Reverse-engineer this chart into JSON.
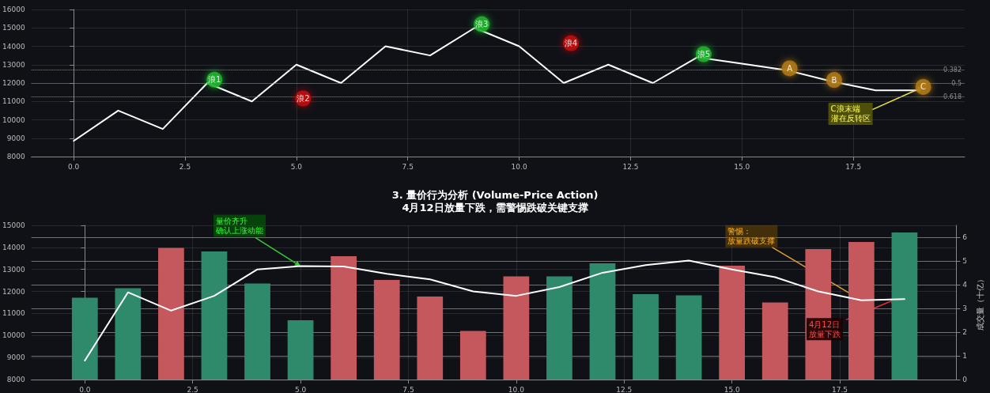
{
  "chart_data": [
    {
      "type": "line",
      "x": [
        0,
        1,
        2,
        3,
        4,
        5,
        6,
        7,
        8,
        9,
        10,
        11,
        12,
        13,
        14,
        15,
        16,
        17,
        18,
        19
      ],
      "xlim": [
        -0.95,
        20
      ],
      "xticks": [
        {
          "value": 0,
          "label": "0.0"
        },
        {
          "value": 2.5,
          "label": "2.5"
        },
        {
          "value": 5,
          "label": "5.0"
        },
        {
          "value": 7.5,
          "label": "7.5"
        },
        {
          "value": 10,
          "label": "10.0"
        },
        {
          "value": 12.5,
          "label": "12.5"
        },
        {
          "value": 15,
          "label": "15.0"
        },
        {
          "value": 17.5,
          "label": "17.5"
        }
      ],
      "ylim": [
        8000,
        16000
      ],
      "yticks": [
        8000,
        9000,
        10000,
        11000,
        12000,
        13000,
        14000,
        15000,
        16000
      ],
      "grid": true,
      "series": [
        {
          "color": "#ffffff",
          "values": [
            8850,
            10500,
            9500,
            12000,
            11000,
            13000,
            12000,
            14000,
            13500,
            15000,
            14000,
            12000,
            13000,
            12000,
            13400,
            13050,
            12700,
            12100,
            11600,
            11600
          ]
        },
        {
          "type": "scatter",
          "marker": "circle",
          "color": "#1fb52a",
          "x": [
            3.16,
            9.16,
            14.14
          ],
          "values": [
            12180,
            15200,
            13570
          ],
          "value_labels": [
            "浪1",
            "浪3",
            "浪5"
          ]
        },
        {
          "type": "scatter",
          "marker": "circle",
          "color": "#c01010",
          "x": [
            5.15,
            11.16
          ],
          "values": [
            11160,
            14170
          ],
          "value_labels": [
            "浪2",
            "浪4"
          ]
        },
        {
          "type": "scatter",
          "marker": "circle",
          "color": "#b07a14",
          "x": [
            16.07,
            17.07,
            19.07
          ],
          "values": [
            12800,
            12170,
            11790
          ],
          "value_labels": [
            "A",
            "B",
            "C"
          ]
        }
      ],
      "ref_lines": [
        {
          "axis": "y",
          "value": 12700,
          "color": "#8a8a8a",
          "line_style": "dotted"
        },
        {
          "axis": "y",
          "value": 12000,
          "color": "#8a8a8a",
          "line_style": "dotted"
        },
        {
          "axis": "y",
          "value": 11250,
          "color": "#8a8a8a",
          "line_style": "dotted"
        }
      ],
      "annotations": [
        {
          "text": "C浪末端潜在反转区",
          "x": 19.07,
          "y": 11790
        },
        {
          "text": "0.382",
          "y": 12700
        },
        {
          "text": "0.5",
          "y": 12000
        },
        {
          "text": "0.618",
          "y": 11250
        }
      ]
    },
    {
      "type": "bar",
      "title": "3. 量价行为分析 (Volume-Price Action)",
      "subtitle": "4月12日放量下跌，需警惕跌破关键支撑",
      "y2label": "成交量（十亿）",
      "x": [
        0,
        1,
        2,
        3,
        4,
        5,
        6,
        7,
        8,
        9,
        10,
        11,
        12,
        13,
        14,
        15,
        16,
        17,
        18,
        19
      ],
      "xlim": [
        -1.24,
        20.2
      ],
      "xticks": [
        {
          "value": 0,
          "label": "0.0"
        },
        {
          "value": 2.5,
          "label": "2.5"
        },
        {
          "value": 5,
          "label": "5.0"
        },
        {
          "value": 7.5,
          "label": "7.5"
        },
        {
          "value": 10,
          "label": "10.0"
        },
        {
          "value": 12.5,
          "label": "12.5"
        },
        {
          "value": 15,
          "label": "15.0"
        },
        {
          "value": 17.5,
          "label": "17.5"
        }
      ],
      "ylim": [
        8000,
        15000
      ],
      "yticks": [
        8000,
        9000,
        10000,
        11000,
        12000,
        13000,
        14000,
        15000
      ],
      "y2lim": [
        0,
        6.5
      ],
      "y2ticks": [
        0,
        1,
        2,
        3,
        4,
        5,
        6
      ],
      "grid": true,
      "series": [
        {
          "axis": "y2",
          "colors": [
            "#2f8a6c",
            "#2f8a6c",
            "#c4585d",
            "#2f8a6c",
            "#2f8a6c",
            "#2f8a6c",
            "#c4585d",
            "#c4585d",
            "#c4585d",
            "#c4585d",
            "#c4585d",
            "#2f8a6c",
            "#2f8a6c",
            "#2f8a6c",
            "#2f8a6c",
            "#c4585d",
            "#c4585d",
            "#c4585d",
            "#c4585d",
            "#2f8a6c"
          ],
          "values": [
            3.45,
            3.85,
            5.55,
            5.4,
            4.05,
            2.5,
            5.2,
            4.2,
            3.5,
            2.05,
            4.35,
            4.35,
            4.9,
            3.6,
            3.55,
            4.8,
            3.25,
            5.5,
            5.8,
            6.2
          ]
        },
        {
          "type": "line",
          "color": "#ffffff",
          "values": [
            8860,
            11960,
            11130,
            11800,
            13000,
            13150,
            13130,
            12800,
            12550,
            12000,
            11800,
            12200,
            12850,
            13200,
            13400,
            13000,
            12650,
            12000,
            11600,
            11650
          ]
        }
      ],
      "annotations": [
        {
          "text": "量价齐升确认上涨动能",
          "x": 5,
          "y": 13150
        },
        {
          "text": "警惕：放量跌破支撑",
          "x": 18,
          "y": 11600
        },
        {
          "text": "4月12日放量下跌",
          "x": 18.8,
          "y": 11650
        }
      ]
    }
  ]
}
